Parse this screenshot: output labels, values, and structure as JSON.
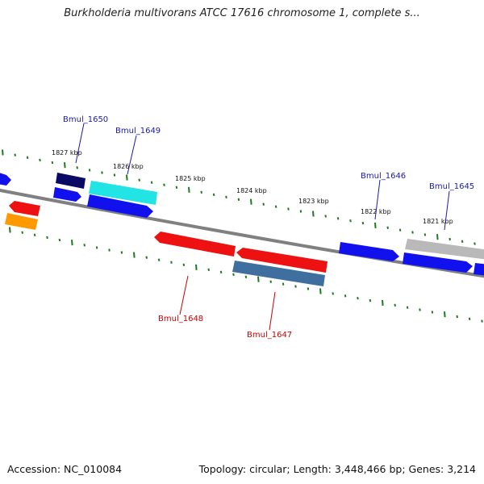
{
  "title": "Burkholderia multivorans ATCC 17616 chromosome 1, complete s...",
  "footer": {
    "accession": "Accession: NC_010084",
    "summary": "Topology: circular; Length: 3,448,466 bp; Genes: 3,214"
  },
  "ticks": [
    {
      "label": "1827 kbp"
    },
    {
      "label": "1826 kbp"
    },
    {
      "label": "1825 kbp"
    },
    {
      "label": "1824 kbp"
    },
    {
      "label": "1823 kbp"
    },
    {
      "label": "1822 kbp"
    },
    {
      "label": "1821 kbp"
    }
  ],
  "gene_labels": [
    {
      "name": "Bmul_1650",
      "color": "#1a1aaa"
    },
    {
      "name": "Bmul_1649",
      "color": "#1a1aaa"
    },
    {
      "name": "Bmul_1648",
      "color": "#cc0000"
    },
    {
      "name": "Bmul_1647",
      "color": "#cc0000"
    },
    {
      "name": "Bmul_1646",
      "color": "#1a1aaa"
    },
    {
      "name": "Bmul_1645",
      "color": "#1a1aaa"
    }
  ],
  "colors": {
    "backbone": "#808080",
    "tick": "#1e7a1e",
    "red": "#ee1111",
    "blue": "#1111ee",
    "navy": "#0a0a66",
    "cyan": "#22e4e4",
    "orange": "#ff9900",
    "steelblue": "#3f6f9f",
    "gray": "#b9b9b9"
  }
}
